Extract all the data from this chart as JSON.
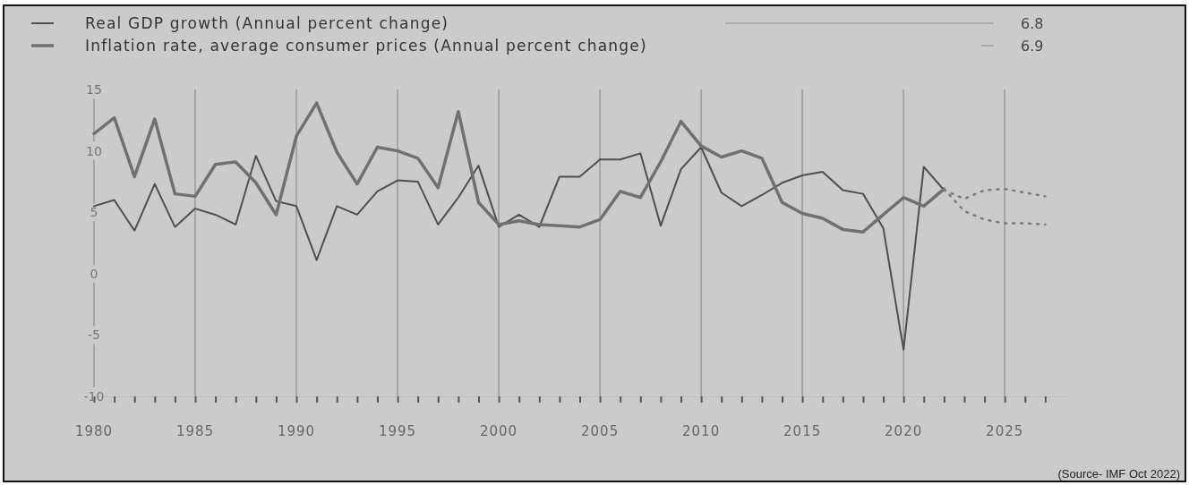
{
  "chart_data": {
    "type": "line",
    "x": [
      1980,
      1981,
      1982,
      1983,
      1984,
      1985,
      1986,
      1987,
      1988,
      1989,
      1990,
      1991,
      1992,
      1993,
      1994,
      1995,
      1996,
      1997,
      1998,
      1999,
      2000,
      2001,
      2002,
      2003,
      2004,
      2005,
      2006,
      2007,
      2008,
      2009,
      2010,
      2011,
      2012,
      2013,
      2014,
      2015,
      2016,
      2017,
      2018,
      2019,
      2020,
      2021,
      2022
    ],
    "series": [
      {
        "name": "Real GDP growth (Annual percent change)",
        "color": "#4f4f4f",
        "values": [
          5.5,
          6.0,
          3.5,
          7.3,
          3.8,
          5.3,
          4.8,
          4.0,
          9.6,
          5.9,
          5.5,
          1.1,
          5.5,
          4.8,
          6.7,
          7.6,
          7.5,
          4.0,
          6.2,
          8.8,
          3.8,
          4.8,
          3.8,
          7.9,
          7.9,
          9.3,
          9.3,
          9.8,
          3.9,
          8.5,
          10.3,
          6.6,
          5.5,
          6.4,
          7.4,
          8.0,
          8.3,
          6.8,
          6.5,
          3.7,
          -6.2,
          8.7,
          6.8
        ]
      },
      {
        "name": "Inflation rate, average consumer prices (Annual percent change)",
        "color": "#707070",
        "values": [
          11.4,
          12.7,
          7.9,
          12.6,
          6.5,
          6.3,
          8.9,
          9.1,
          7.4,
          4.8,
          11.2,
          13.9,
          9.9,
          7.3,
          10.3,
          10.0,
          9.4,
          7.0,
          13.2,
          5.8,
          4.0,
          4.3,
          4.0,
          3.9,
          3.8,
          4.4,
          6.7,
          6.2,
          9.1,
          12.4,
          10.4,
          9.5,
          10.0,
          9.4,
          5.8,
          4.9,
          4.5,
          3.6,
          3.4,
          4.8,
          6.2,
          5.5,
          6.9
        ]
      },
      {
        "type": "line",
        "line_style": "dotted",
        "color": "#7a7a7a",
        "x": [
          2022,
          2023,
          2024,
          2025,
          2026,
          2027
        ],
        "values": [
          6.8,
          6.1,
          6.8,
          6.9,
          6.6,
          6.3
        ]
      },
      {
        "type": "line",
        "line_style": "dotted",
        "color": "#7a7a7a",
        "x": [
          2022,
          2023,
          2024,
          2025,
          2026,
          2027
        ],
        "values": [
          6.9,
          5.1,
          4.4,
          4.1,
          4.1,
          4.0
        ]
      }
    ],
    "xlim": [
      1980,
      2028
    ],
    "ylim": [
      -10,
      15
    ],
    "yticks": [
      -10,
      -5,
      0,
      5,
      10,
      15
    ],
    "xticks": [
      1980,
      {
        "value": 1981,
        "label": null
      },
      {
        "value": 1982,
        "label": null
      },
      {
        "value": 1983,
        "label": null
      },
      {
        "value": 1984,
        "label": null
      },
      1985,
      {
        "value": 1986,
        "label": null
      },
      {
        "value": 1987,
        "label": null
      },
      {
        "value": 1988,
        "label": null
      },
      {
        "value": 1989,
        "label": null
      },
      1990,
      {
        "value": 1991,
        "label": null
      },
      {
        "value": 1992,
        "label": null
      },
      {
        "value": 1993,
        "label": null
      },
      {
        "value": 1994,
        "label": null
      },
      1995,
      {
        "value": 1996,
        "label": null
      },
      {
        "value": 1997,
        "label": null
      },
      {
        "value": 1998,
        "label": null
      },
      {
        "value": 1999,
        "label": null
      },
      2000,
      {
        "value": 2001,
        "label": null
      },
      {
        "value": 2002,
        "label": null
      },
      {
        "value": 2003,
        "label": null
      },
      {
        "value": 2004,
        "label": null
      },
      2005,
      {
        "value": 2006,
        "label": null
      },
      {
        "value": 2007,
        "label": null
      },
      {
        "value": 2008,
        "label": null
      },
      {
        "value": 2009,
        "label": null
      },
      2010,
      {
        "value": 2011,
        "label": null
      },
      {
        "value": 2012,
        "label": null
      },
      {
        "value": 2013,
        "label": null
      },
      {
        "value": 2014,
        "label": null
      },
      2015,
      {
        "value": 2016,
        "label": null
      },
      {
        "value": 2017,
        "label": null
      },
      {
        "value": 2018,
        "label": null
      },
      {
        "value": 2019,
        "label": null
      },
      2020,
      {
        "value": 2021,
        "label": null
      },
      {
        "value": 2022,
        "label": null
      },
      {
        "value": 2023,
        "label": null
      },
      {
        "value": 2024,
        "label": null
      },
      2025,
      {
        "value": 2026,
        "label": null
      },
      {
        "value": 2027,
        "label": null
      }
    ],
    "grid": "x",
    "legend": "top left",
    "annotations": [
      "6.8",
      "6.9",
      "(Source- IMF Oct 2022)"
    ]
  }
}
